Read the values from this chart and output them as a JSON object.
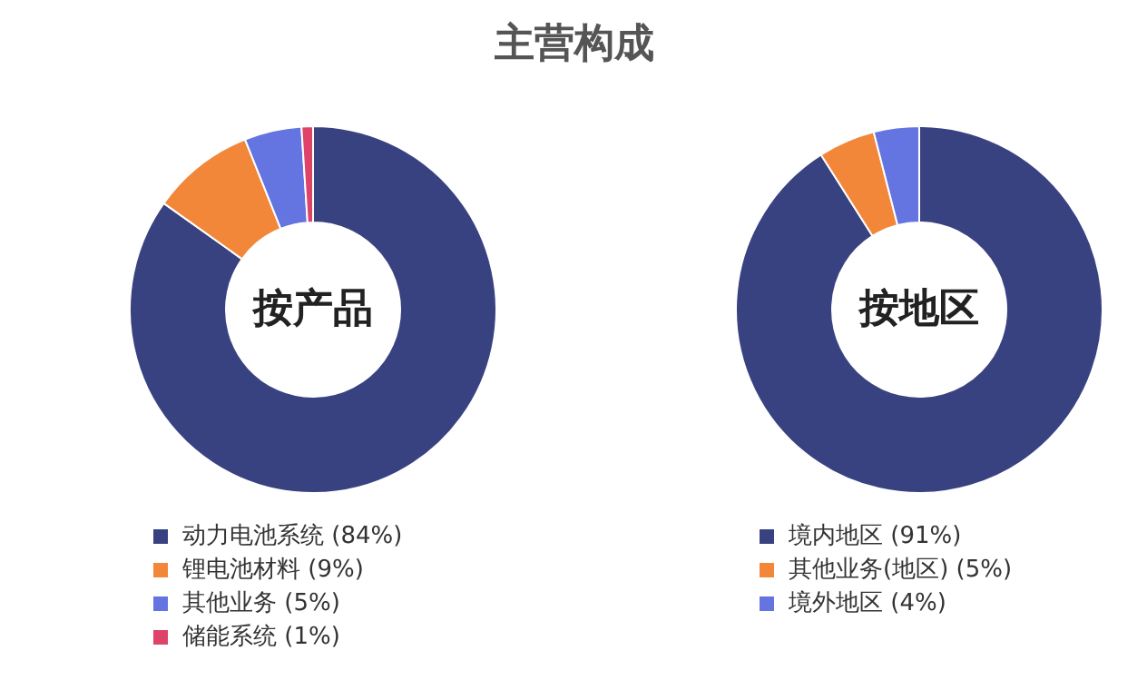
{
  "chart_data": [
    {
      "type": "donut",
      "title": "主营构成",
      "annotations": [
        "按产品"
      ],
      "legend": "bottom",
      "categories": [
        "动力电池系统 (84%)",
        "锂电池材料 (9%)",
        "其他业务 (5%)",
        "储能系统 (1%)"
      ],
      "values": [
        84,
        9,
        5,
        1
      ],
      "colors": [
        "#394280",
        "#f2873a",
        "#6474e0",
        "#dd4468"
      ]
    },
    {
      "type": "donut",
      "annotations": [
        "按地区"
      ],
      "legend": "bottom",
      "categories": [
        "境内地区 (91%)",
        "其他业务(地区) (5%)",
        "境外地区 (4%)"
      ],
      "values": [
        91,
        5,
        4
      ],
      "colors": [
        "#394280",
        "#f2873a",
        "#6474e0"
      ]
    }
  ]
}
